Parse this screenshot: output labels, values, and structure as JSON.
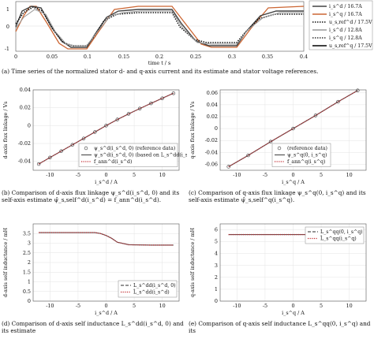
{
  "top_chart": {
    "y_ticks": [
      "1",
      "0",
      "-1"
    ],
    "x_ticks": [
      "0",
      "0.05",
      "0.1",
      "0.15",
      "0.2",
      "0.25",
      "0.3",
      "0.35",
      "0.4"
    ],
    "xlabel": "time t / s",
    "legend": [
      {
        "label": "i_s^d / 16.7A",
        "color": "#444444",
        "style": "solid"
      },
      {
        "label": "i_s^q / 16.7A",
        "color": "#cc6633",
        "style": "solid"
      },
      {
        "label": "u_s,ref^d / 17.5V",
        "color": "#111111",
        "style": "dotted"
      },
      {
        "label": "i_s^d / 12.8A",
        "color": "#999999",
        "style": "solid"
      },
      {
        "label": "i_s^q / 12.8A",
        "color": "#333333",
        "style": "dotted"
      },
      {
        "label": "u_s,ref^q / 17.5V",
        "color": "#000000",
        "style": "solid"
      }
    ],
    "caption": "(a) Time series of the normalized stator d- and q-axis current and its estimate and stator voltage references."
  },
  "chart_data": [
    {
      "type": "line",
      "xlabel": "i_s^d / A",
      "ylabel": "d-axis flux linkage / Vs",
      "xlim": [
        -13,
        13
      ],
      "ylim": [
        -0.05,
        0.04
      ],
      "x_ticks": [
        -10,
        -5,
        0,
        5,
        10
      ],
      "y_ticks": [
        -0.04,
        -0.02,
        0,
        0.02,
        0.04
      ],
      "legend": [
        "ψ_s^d(i_s^d, 0)  (reference data)",
        "ψ_s^d(i_s^d, 0)  (based on L_s^dd(i_s^d, 0))",
        "f_ann^d(i_s^d)"
      ],
      "x": [
        -12,
        -10,
        -8,
        -6,
        -4,
        -2,
        0,
        2,
        4,
        6,
        8,
        10,
        12
      ],
      "series": [
        {
          "values": [
            -0.043,
            -0.0357,
            -0.0286,
            -0.0215,
            -0.0144,
            -0.0072,
            0.0,
            0.0068,
            0.0131,
            0.0191,
            0.0249,
            0.0306,
            0.0362
          ]
        }
      ],
      "caption": "(b) Comparison of d-axis flux linkage ψ_s^d(i_s^d, 0) and its self-axis estimate ψ̂_s,self^d(i_s^d) = f_ann^d(i_s^d)."
    },
    {
      "type": "line",
      "xlabel": "i_s^q / A",
      "ylabel": "q-axis flux linkage / Vs",
      "xlim": [
        -13,
        13
      ],
      "ylim": [
        -0.07,
        0.065
      ],
      "x_ticks": [
        -10,
        -5,
        0,
        5,
        10
      ],
      "y_ticks": [
        -0.06,
        -0.04,
        -0.02,
        0,
        0.02,
        0.04,
        0.06
      ],
      "legend": [
        "(reference data)",
        "ψ_s^q(0, i_s^q)",
        "f_ann^q(i_s^q)"
      ],
      "x": [
        -11.5,
        -8,
        -4,
        0,
        4,
        8,
        11.5
      ],
      "series": [
        {
          "values": [
            -0.064,
            -0.045,
            -0.022,
            0.0,
            0.022,
            0.045,
            0.064
          ]
        }
      ],
      "caption": "(c) Comparison of q-axis flux linkage ψ_s^q(0, i_s^q) and its self-axis estimate ψ̂_s,self^q(i_s^q)."
    },
    {
      "type": "line",
      "xlabel": "i_s^d / A",
      "ylabel": "d-axis self inductance / mH",
      "xlim": [
        -13,
        13
      ],
      "ylim": [
        0,
        4
      ],
      "x_ticks": [
        -10,
        -5,
        0,
        5,
        10
      ],
      "y_ticks": [
        0,
        0.5,
        1,
        1.5,
        2,
        2.5,
        3,
        3.5
      ],
      "legend": [
        "L_s^dd(i_s^d, 0)",
        "L̂_s^dd(i_s^d)"
      ],
      "x": [
        -12,
        -6,
        -2,
        -1,
        0,
        1,
        2,
        4,
        8,
        12
      ],
      "series": [
        {
          "values": [
            3.55,
            3.55,
            3.55,
            3.5,
            3.4,
            3.25,
            3.05,
            2.92,
            2.9,
            2.9
          ]
        }
      ],
      "caption": "(d) Comparison of d-axis self inductance L_s^dd(i_s^d, 0) and its estimate"
    },
    {
      "type": "line",
      "xlabel": "i_s^q / A",
      "ylabel": "q-axis self inductance / mH",
      "xlim": [
        -13,
        13
      ],
      "ylim": [
        0,
        6.5
      ],
      "x_ticks": [
        -10,
        -5,
        0,
        5,
        10
      ],
      "y_ticks": [
        0,
        1,
        2,
        3,
        4,
        5,
        6
      ],
      "legend": [
        "L_s^qq(0, i_s^q)",
        "L̂_s^qq(i_s^q)"
      ],
      "x": [
        -11.5,
        0,
        11.5
      ],
      "series": [
        {
          "values": [
            5.6,
            5.6,
            5.6
          ]
        }
      ],
      "caption": "(e) Comparison of q-axis self inductance L_s^qq(0, i_s^q) and its"
    }
  ]
}
